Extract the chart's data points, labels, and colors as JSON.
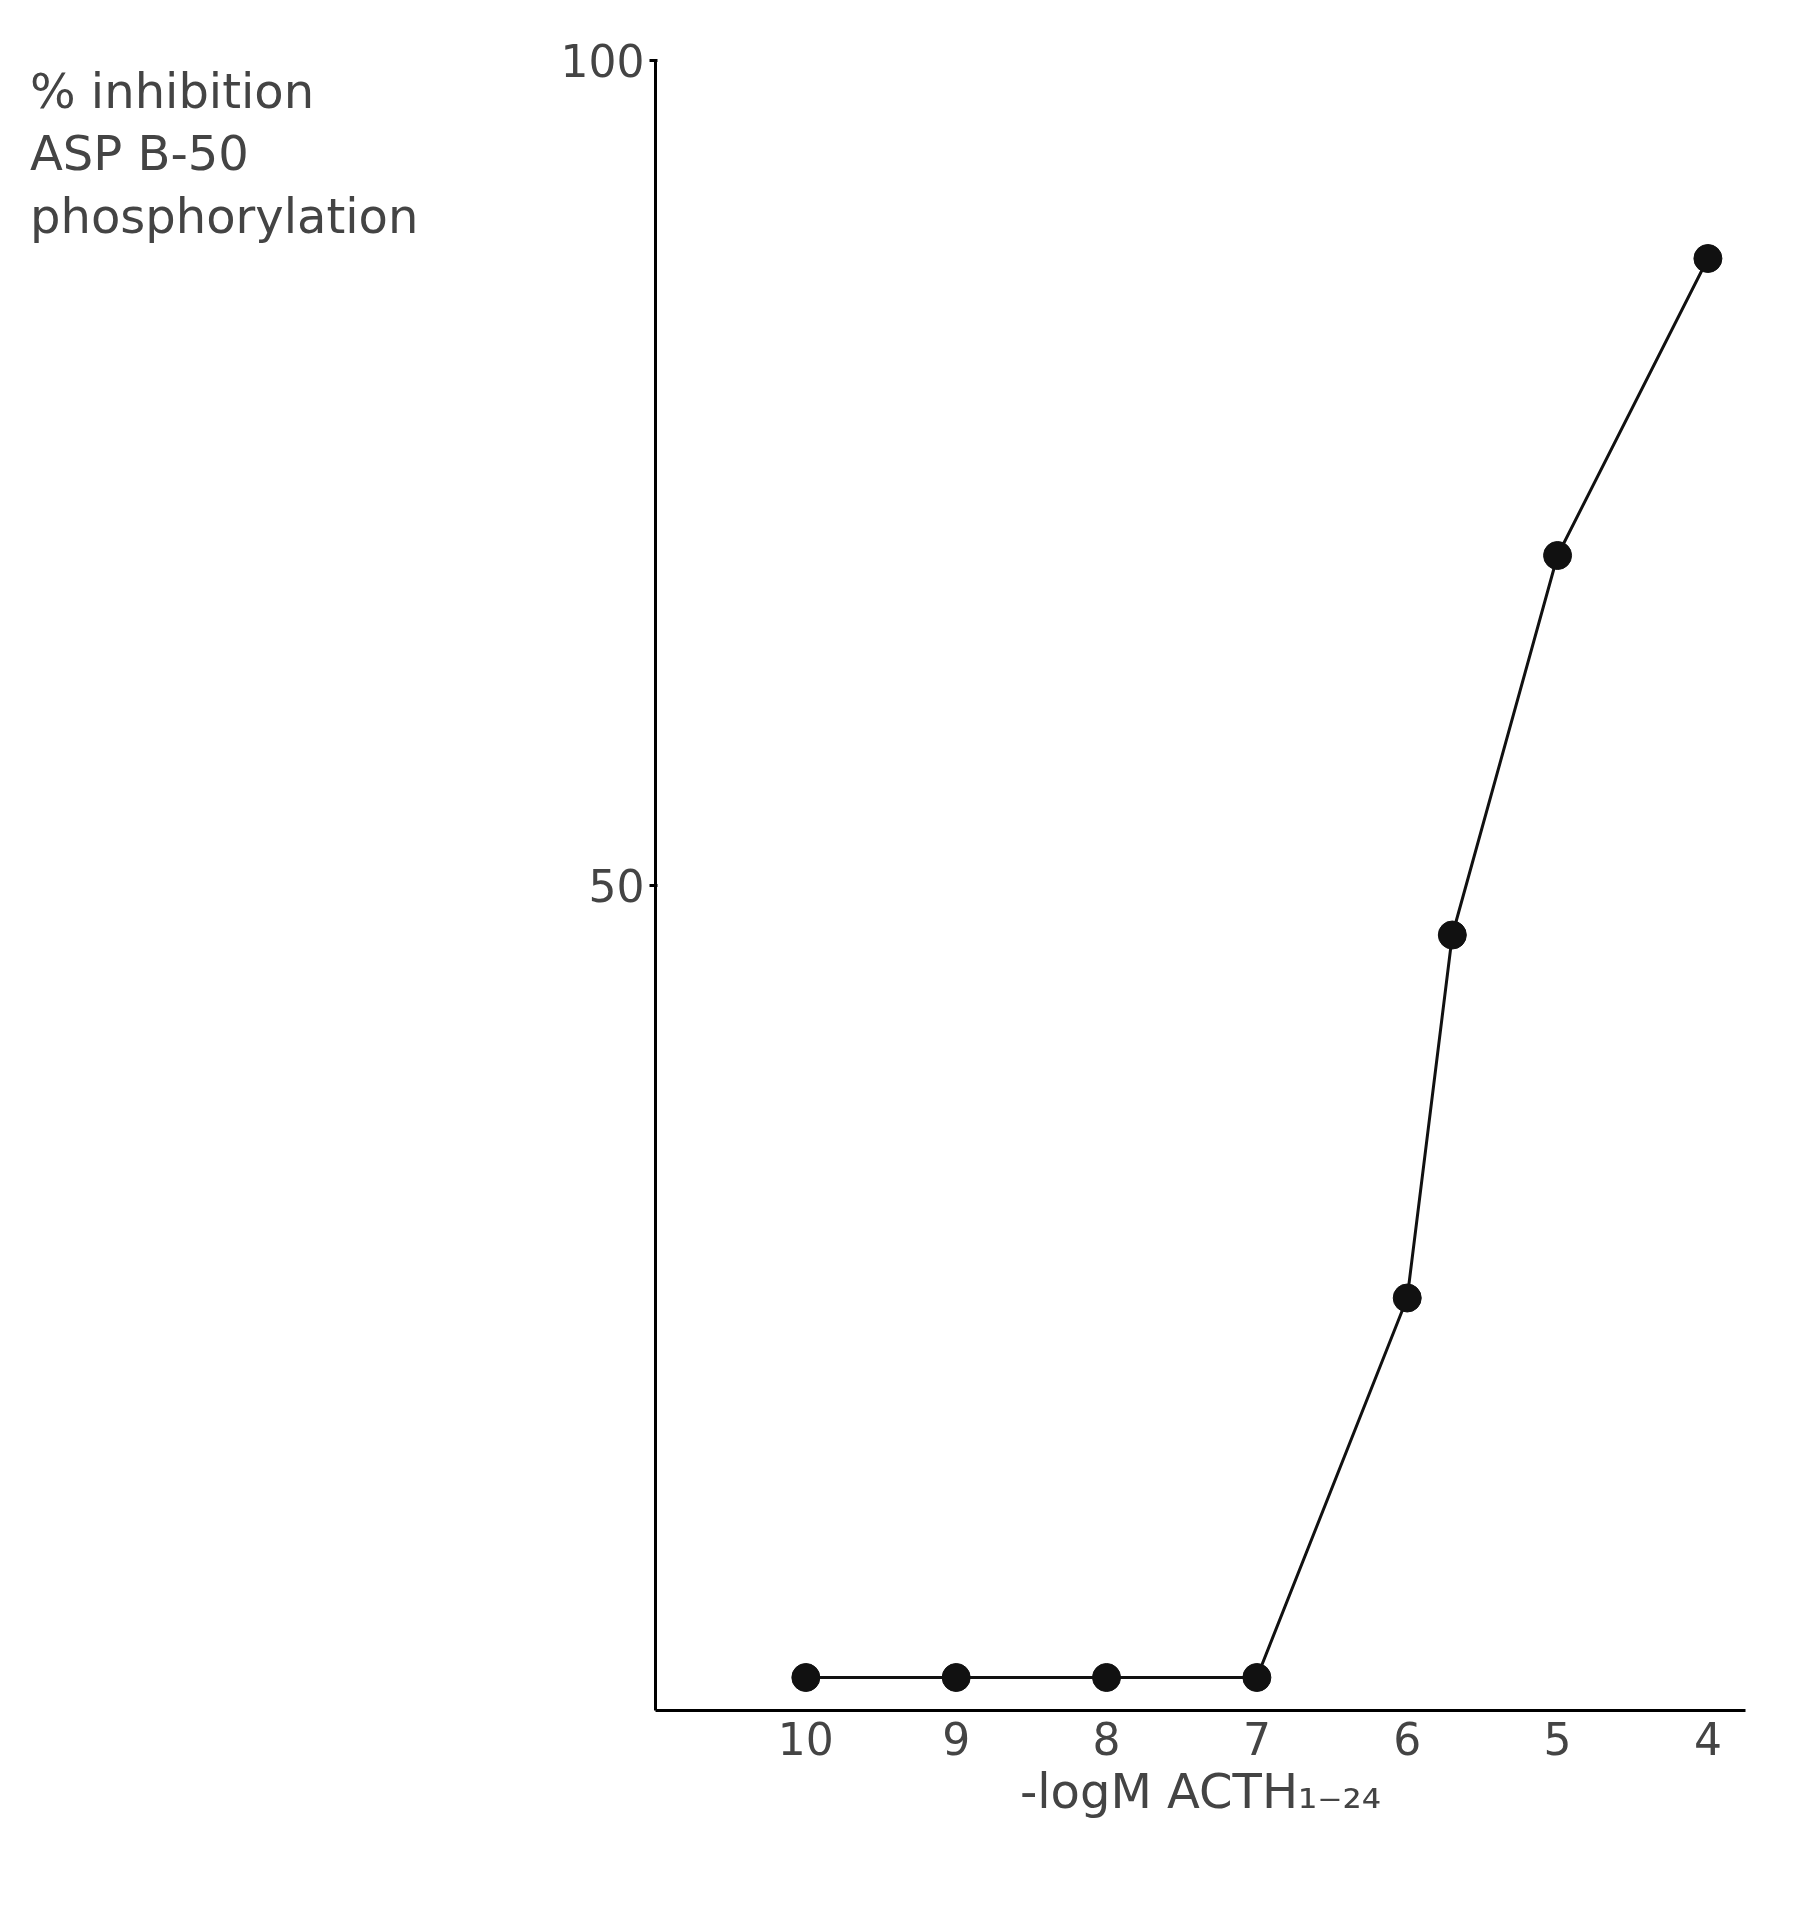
{
  "chart_data": {
    "type": "line",
    "ylabel": "% inhibition\nASP B-50\nphosphorylation",
    "xlabel": "-logM ACTH₁₋₂₄",
    "x": [
      10,
      9,
      8,
      7,
      6,
      5.7,
      5,
      4
    ],
    "series": [
      {
        "color": "#111111",
        "values": [
          2,
          2,
          2,
          2,
          25,
          47,
          70,
          88
        ]
      }
    ],
    "xlim": [
      11,
      3.75
    ],
    "xticks": [
      10,
      9,
      8,
      7,
      6,
      5,
      4
    ],
    "ylim": [
      0,
      100
    ],
    "yticks": [
      50,
      100
    ],
    "grid": false,
    "marker": "circle",
    "line_style": "solid"
  }
}
